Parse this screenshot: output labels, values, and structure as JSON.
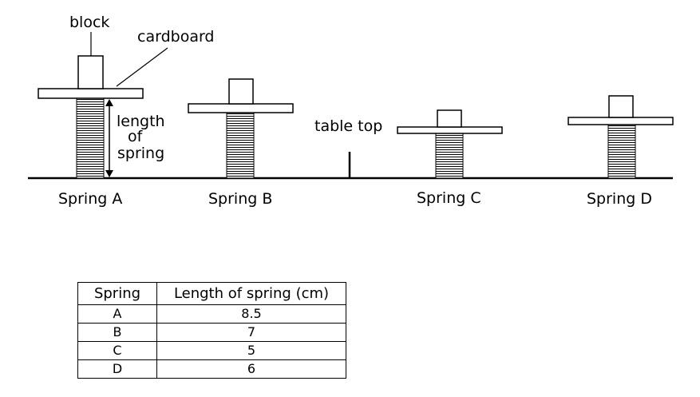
{
  "labels": {
    "block": "block",
    "cardboard": "cardboard",
    "length_line1": "length",
    "length_line2": "of",
    "length_line3": "spring",
    "table_top": "table top"
  },
  "springs": [
    {
      "name": "Spring A",
      "length_cm": 8.5
    },
    {
      "name": "Spring B",
      "length_cm": 7
    },
    {
      "name": "Spring C",
      "length_cm": 5
    },
    {
      "name": "Spring D",
      "length_cm": 6
    }
  ],
  "table": {
    "headers": [
      "Spring",
      "Length of spring (cm)"
    ],
    "rows": [
      [
        "A",
        "8.5"
      ],
      [
        "B",
        "7"
      ],
      [
        "C",
        "5"
      ],
      [
        "D",
        "6"
      ]
    ]
  }
}
